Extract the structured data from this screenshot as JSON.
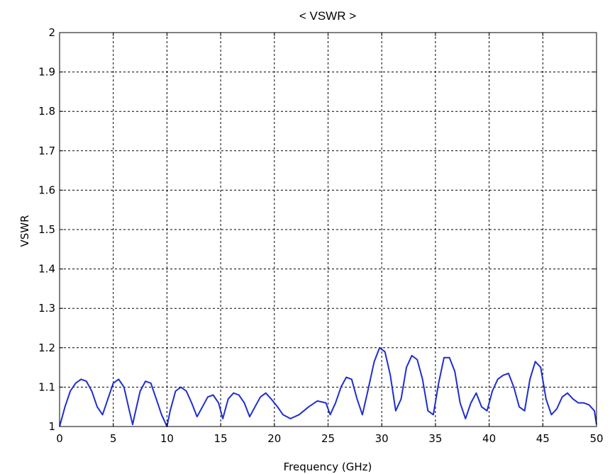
{
  "chart_data": {
    "type": "line",
    "title": "< VSWR >",
    "xlabel": "Frequency (GHz)",
    "ylabel": "VSWR",
    "xlim": [
      0,
      50
    ],
    "ylim": [
      1,
      2
    ],
    "xticks": [
      0,
      5,
      10,
      15,
      20,
      25,
      30,
      35,
      40,
      45,
      50
    ],
    "yticks": [
      1,
      1.1,
      1.2,
      1.3,
      1.4,
      1.5,
      1.6,
      1.7,
      1.8,
      1.9,
      2
    ],
    "xtick_labels": [
      "0",
      "5",
      "10",
      "15",
      "20",
      "25",
      "30",
      "35",
      "40",
      "45",
      "50"
    ],
    "ytick_labels": [
      "1",
      "1.1",
      "1.2",
      "1.3",
      "1.4",
      "1.5",
      "1.6",
      "1.7",
      "1.8",
      "1.9",
      "2"
    ],
    "grid": true,
    "line_color": "#1f2fcc",
    "series": [
      {
        "x": [
          0,
          0.5,
          1,
          1.5,
          2,
          2.5,
          3,
          3.5,
          4,
          4.5,
          5,
          5.5,
          6,
          6.5,
          6.8,
          7,
          7.5,
          8,
          8.5,
          9,
          9.5,
          10,
          10.3,
          10.8,
          11.3,
          11.8,
          12.3,
          12.8,
          13.3,
          13.8,
          14.3,
          14.8,
          15.2,
          15.7,
          16.2,
          16.7,
          17.2,
          17.7,
          18.2,
          18.7,
          19.2,
          19.7,
          20.3,
          20.8,
          21.5,
          22.3,
          23.2,
          24.0,
          24.8,
          25.2,
          25.7,
          26.2,
          26.7,
          27.2,
          27.7,
          28.2,
          28.7,
          29.3,
          29.8,
          30.3,
          30.8,
          31.3,
          31.8,
          32.3,
          32.8,
          33.3,
          33.8,
          34.3,
          34.8,
          35.3,
          35.8,
          36.3,
          36.8,
          37.3,
          37.8,
          38.3,
          38.8,
          39.3,
          39.8,
          40.3,
          40.8,
          41.3,
          41.8,
          42.3,
          42.8,
          43.3,
          43.8,
          44.3,
          44.8,
          45.3,
          45.8,
          46.3,
          46.8,
          47.3,
          47.8,
          48.3,
          48.8,
          49.3,
          49.8,
          50
        ],
        "y": [
          1.0,
          1.05,
          1.09,
          1.11,
          1.12,
          1.115,
          1.09,
          1.05,
          1.03,
          1.07,
          1.11,
          1.12,
          1.1,
          1.04,
          1.005,
          1.03,
          1.09,
          1.115,
          1.11,
          1.07,
          1.03,
          1.0,
          1.04,
          1.09,
          1.1,
          1.09,
          1.06,
          1.025,
          1.05,
          1.075,
          1.08,
          1.06,
          1.02,
          1.07,
          1.085,
          1.08,
          1.06,
          1.025,
          1.05,
          1.075,
          1.085,
          1.07,
          1.05,
          1.03,
          1.02,
          1.03,
          1.05,
          1.065,
          1.06,
          1.03,
          1.06,
          1.1,
          1.125,
          1.12,
          1.07,
          1.03,
          1.09,
          1.165,
          1.2,
          1.19,
          1.13,
          1.04,
          1.07,
          1.15,
          1.18,
          1.17,
          1.12,
          1.04,
          1.03,
          1.11,
          1.175,
          1.175,
          1.14,
          1.06,
          1.02,
          1.06,
          1.085,
          1.05,
          1.04,
          1.09,
          1.12,
          1.13,
          1.135,
          1.1,
          1.05,
          1.04,
          1.12,
          1.165,
          1.15,
          1.07,
          1.03,
          1.045,
          1.075,
          1.085,
          1.07,
          1.06,
          1.06,
          1.055,
          1.04,
          1.005
        ]
      }
    ]
  }
}
